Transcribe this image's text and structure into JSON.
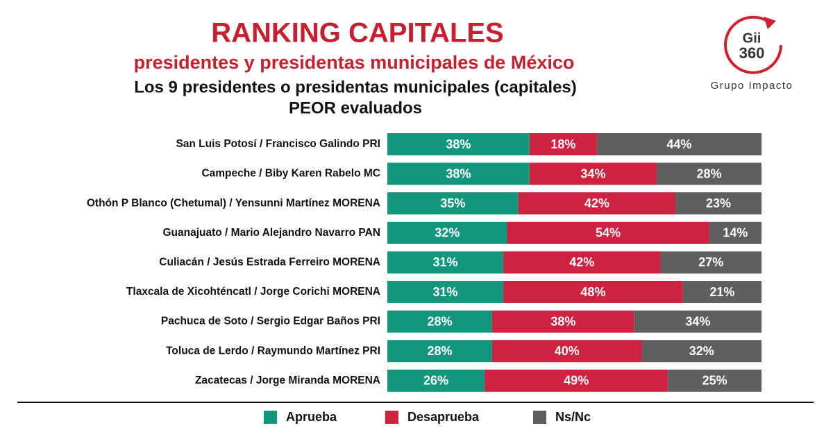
{
  "title": "RANKING CAPITALES",
  "subtitle": "presidentes y presidentas municipales de México",
  "heading": [
    "Los 9 presidentes o presidentas municipales (capitales)",
    "PEOR evaluados"
  ],
  "logo": {
    "mark": [
      "Gii",
      "360"
    ],
    "caption": "Grupo Impacto"
  },
  "chart_data": {
    "type": "stacked-bar-horizontal",
    "categories": [
      "San Luis Potosí / Francisco Galindo PRI",
      "Campeche / Biby Karen Rabelo MC",
      "Othón P Blanco (Chetumal) / Yensunni Martínez MORENA",
      "Guanajuato / Mario Alejandro Navarro PAN",
      "Culiacán / Jesús Estrada Ferreiro MORENA",
      "Tlaxcala de Xicohténcatl / Jorge Corichi MORENA",
      "Pachuca de Soto / Sergio Edgar Baños PRI",
      "Toluca de Lerdo / Raymundo Martínez PRI",
      "Zacatecas / Jorge Miranda MORENA"
    ],
    "series": [
      {
        "name": "Aprueba",
        "color": "#12977c",
        "values": [
          38,
          38,
          35,
          32,
          31,
          31,
          28,
          28,
          26
        ],
        "value_labels": [
          "38%",
          "38%",
          "35%",
          "32%",
          "31%",
          "31%",
          "28%",
          "28%",
          "26%"
        ]
      },
      {
        "name": "Desaprueba",
        "color": "#cf2140",
        "values": [
          18,
          34,
          42,
          54,
          42,
          48,
          38,
          40,
          49
        ],
        "value_labels": [
          "18%",
          "34%",
          "42%",
          "54%",
          "42%",
          "48%",
          "38%",
          "40%",
          "49%"
        ]
      },
      {
        "name": "Ns/Nc",
        "color": "#5f5f5f",
        "values": [
          44,
          28,
          23,
          14,
          27,
          21,
          34,
          32,
          25
        ],
        "value_labels": [
          "44%",
          "28%",
          "23%",
          "14%",
          "27%",
          "21%",
          "34%",
          "32%",
          "25%"
        ]
      }
    ]
  }
}
